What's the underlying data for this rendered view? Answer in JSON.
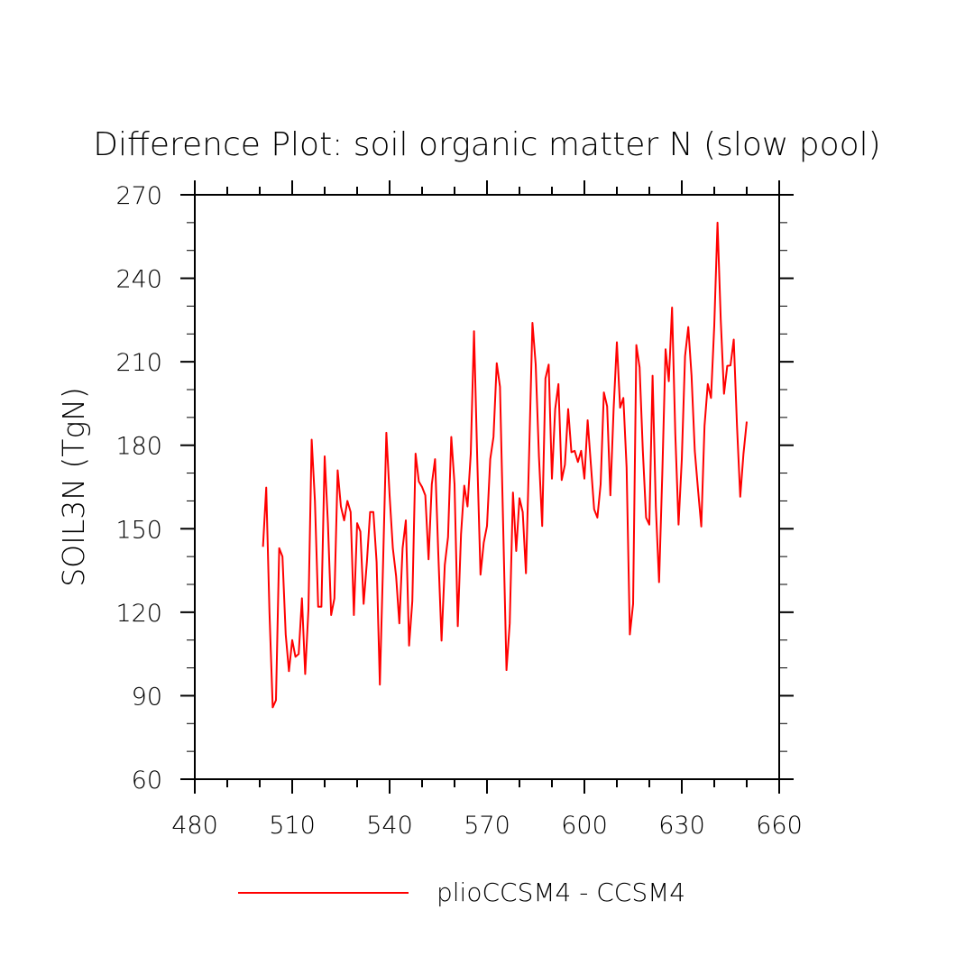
{
  "chart_data": {
    "type": "line",
    "title": "Difference Plot: soil organic matter N (slow pool)",
    "xlabel": "",
    "ylabel": "SOIL3N   (TgN)",
    "xlim": [
      480,
      660
    ],
    "ylim": [
      60,
      270
    ],
    "x_ticks": [
      480,
      510,
      540,
      570,
      600,
      630,
      660
    ],
    "x_tick_labels": [
      "480",
      "510",
      "540",
      "570",
      "600",
      "630",
      "660"
    ],
    "y_ticks": [
      60,
      90,
      120,
      150,
      180,
      210,
      240,
      270
    ],
    "y_tick_labels": [
      "60",
      "90",
      "120",
      "150",
      "180",
      "210",
      "240",
      "270"
    ],
    "grid": false,
    "legend_position": "bottom-center",
    "series": [
      {
        "name": "plioCCSM4 - CCSM4",
        "color": "#ff0000",
        "x": [
          501,
          502,
          503,
          504,
          505,
          506,
          507,
          508,
          509,
          510,
          511,
          512,
          513,
          514,
          515,
          516,
          517,
          518,
          519,
          520,
          521,
          522,
          523,
          524,
          525,
          526,
          527,
          528,
          529,
          530,
          531,
          532,
          533,
          534,
          535,
          536,
          537,
          538,
          539,
          540,
          541,
          542,
          543,
          544,
          545,
          546,
          547,
          548,
          549,
          550,
          551,
          552,
          553,
          554,
          555,
          556,
          557,
          558,
          559,
          560,
          561,
          562,
          563,
          564,
          565,
          566,
          567,
          568,
          569,
          570,
          571,
          572,
          573,
          574,
          575,
          576,
          577,
          578,
          579,
          580,
          581,
          582,
          583,
          584,
          585,
          586,
          587,
          588,
          589,
          590,
          591,
          592,
          593,
          594,
          595,
          596,
          597,
          598,
          599,
          600,
          601,
          602,
          603,
          604,
          605,
          606,
          607,
          608,
          609,
          610,
          611,
          612,
          613,
          614,
          615,
          616,
          617,
          618,
          619,
          620,
          621,
          622,
          623,
          624,
          625,
          626,
          627,
          628,
          629,
          630,
          631,
          632,
          633,
          634,
          635,
          636,
          637,
          638,
          639,
          640,
          641,
          642,
          643,
          644,
          645,
          646,
          647,
          648,
          649,
          650
        ],
        "values": [
          143.5,
          164.8,
          120.0,
          85.8,
          88.4,
          143.0,
          140.0,
          112.0,
          98.8,
          110.0,
          104.0,
          105.0,
          125.0,
          97.8,
          121.0,
          182.0,
          160.0,
          122.0,
          122.0,
          176.0,
          152.0,
          119.0,
          125.0,
          171.0,
          158.0,
          153.0,
          160.0,
          156.0,
          119.0,
          152.0,
          149.0,
          123.0,
          138.0,
          156.0,
          156.0,
          138.0,
          94.0,
          138.0,
          184.5,
          162.0,
          143.0,
          133.0,
          116.0,
          143.0,
          153.0,
          108.0,
          124.0,
          177.0,
          167.0,
          165.0,
          162.0,
          139.0,
          166.0,
          175.0,
          141.0,
          109.8,
          137.0,
          147.0,
          183.0,
          166.0,
          115.0,
          148.0,
          165.5,
          158.0,
          177.0,
          221.0,
          175.0,
          133.5,
          145.0,
          151.0,
          175.0,
          183.0,
          209.5,
          201.0,
          150.0,
          99.2,
          116.0,
          163.0,
          142.0,
          161.0,
          156.0,
          134.0,
          178.0,
          224.0,
          209.0,
          176.0,
          151.0,
          204.0,
          209.0,
          168.0,
          193.0,
          202.0,
          167.5,
          173.0,
          193.0,
          177.5,
          178.0,
          174.0,
          178.0,
          168.0,
          189.0,
          173.0,
          157.0,
          154.0,
          166.0,
          199.0,
          194.0,
          162.0,
          193.0,
          217.0,
          193.5,
          197.0,
          172.0,
          112.0,
          123.0,
          216.0,
          208.0,
          178.0,
          154.0,
          151.5,
          205.0,
          158.0,
          130.8,
          170.0,
          214.5,
          203.0,
          229.5,
          184.0,
          151.5,
          175.0,
          212.0,
          222.5,
          205.0,
          178.0,
          164.0,
          150.8,
          187.0,
          202.0,
          197.0,
          223.0,
          260.0,
          225.0,
          198.5,
          208.5,
          208.7,
          218.0,
          187.0,
          161.5,
          177.0,
          188.5
        ]
      }
    ]
  }
}
